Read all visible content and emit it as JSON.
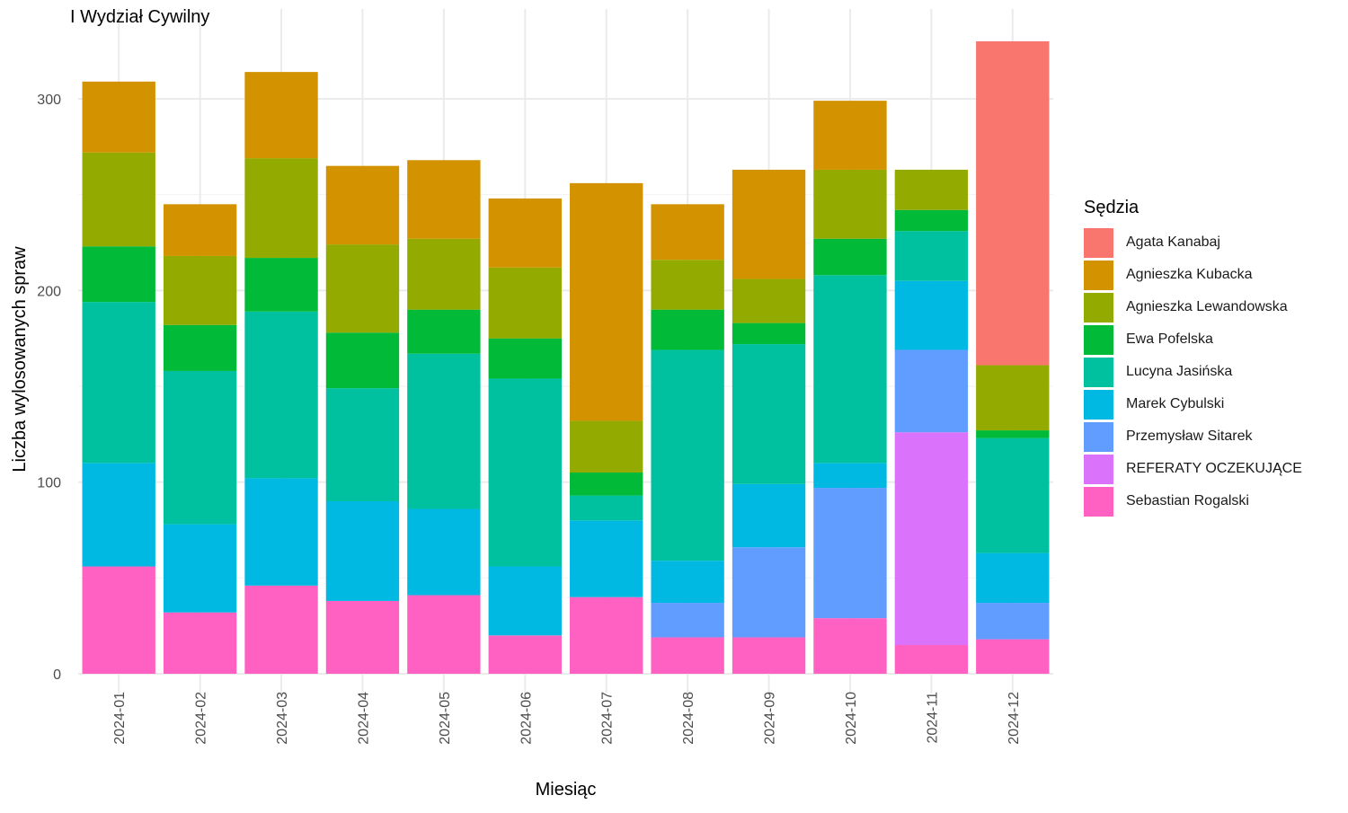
{
  "chart_data": {
    "type": "bar",
    "stacked": true,
    "title": "I Wydział Cywilny",
    "xlabel": "Miesiąc",
    "ylabel": "Liczba wylosowanych spraw",
    "ylim": [
      0,
      330
    ],
    "yticks": [
      0,
      100,
      200,
      300
    ],
    "grid": true,
    "legend_position": "right",
    "legend_title": "Sędzia",
    "categories": [
      "2024-01",
      "2024-02",
      "2024-03",
      "2024-04",
      "2024-05",
      "2024-06",
      "2024-07",
      "2024-08",
      "2024-09",
      "2024-10",
      "2024-11",
      "2024-12"
    ],
    "series": [
      {
        "name": "Agata Kanabaj",
        "color": "#F8766D",
        "values": [
          0,
          0,
          0,
          0,
          0,
          0,
          0,
          0,
          0,
          0,
          0,
          169
        ]
      },
      {
        "name": "Agnieszka Kubacka",
        "color": "#D39200",
        "values": [
          37,
          27,
          45,
          41,
          41,
          36,
          124,
          29,
          57,
          36,
          0,
          0
        ]
      },
      {
        "name": "Agnieszka Lewandowska",
        "color": "#93AA00",
        "values": [
          49,
          36,
          52,
          46,
          37,
          37,
          27,
          26,
          23,
          36,
          21,
          34
        ]
      },
      {
        "name": "Ewa Pofelska",
        "color": "#00BA38",
        "values": [
          29,
          24,
          28,
          29,
          23,
          21,
          12,
          21,
          11,
          19,
          11,
          4
        ]
      },
      {
        "name": "Lucyna Jasińska",
        "color": "#00C19F",
        "values": [
          84,
          80,
          87,
          59,
          81,
          98,
          13,
          110,
          73,
          98,
          26,
          60
        ]
      },
      {
        "name": "Marek Cybulski",
        "color": "#00B9E3",
        "values": [
          54,
          46,
          56,
          52,
          45,
          36,
          40,
          22,
          33,
          13,
          36,
          26
        ]
      },
      {
        "name": "Przemysław Sitarek",
        "color": "#619CFF",
        "values": [
          0,
          0,
          0,
          0,
          0,
          0,
          0,
          18,
          47,
          68,
          43,
          19
        ]
      },
      {
        "name": "REFERATY OCZEKUJĄCE",
        "color": "#DB72FB",
        "values": [
          0,
          0,
          0,
          0,
          0,
          0,
          0,
          0,
          0,
          0,
          111,
          0
        ]
      },
      {
        "name": "Sebastian Rogalski",
        "color": "#FF61C3",
        "values": [
          56,
          32,
          46,
          38,
          41,
          20,
          40,
          19,
          19,
          29,
          15,
          18
        ]
      }
    ]
  }
}
